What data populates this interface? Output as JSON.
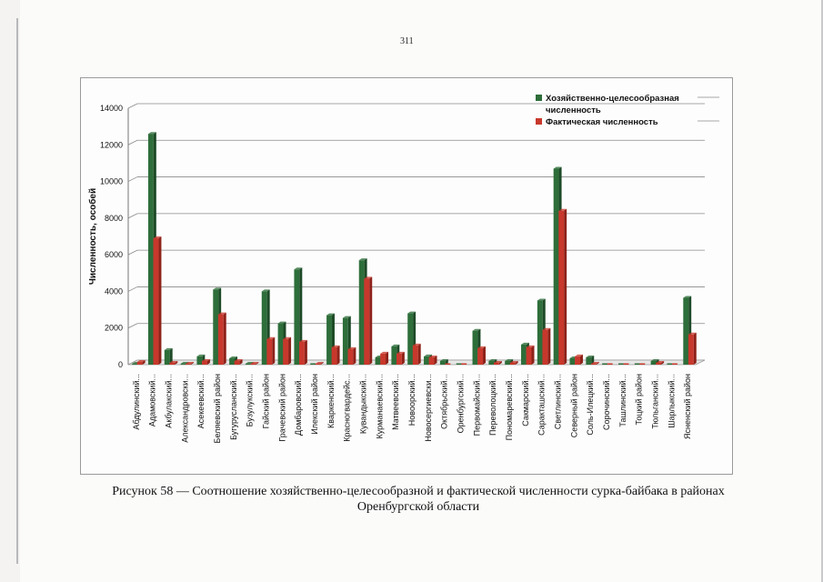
{
  "page_number": "311",
  "caption": {
    "line1": "Рисунок 58 — Соотношение хозяйственно-целесообразной  и фактической численности сурка-байбака в районах",
    "line2": "Оренбургской области"
  },
  "colors": {
    "series1": "#2e6e3a",
    "series1_side": "#1d4a27",
    "series2": "#c8382c",
    "series2_side": "#8e2219"
  },
  "chart_data": {
    "type": "bar",
    "title": "",
    "xlabel": "",
    "ylabel": "Численность, особей",
    "ylim": [
      0,
      14000
    ],
    "yticks": [
      "0",
      "2000",
      "4000",
      "6000",
      "8000",
      "10000",
      "12000",
      "14000"
    ],
    "legend_position": "top-right",
    "categories": [
      "Абдулинский...",
      "Адамовский...",
      "Акбулакский...",
      "Александровски...",
      "Асекеевский...",
      "Беляевский район",
      "Бугурусланский...",
      "Бузулукский...",
      "Гайский район",
      "Грачевский район",
      "Домбаровский...",
      "Илекский район",
      "Кваркенский...",
      "Красногвардейс...",
      "Кувандыкский...",
      "Курманаевский...",
      "Матвеевский...",
      "Новоорский...",
      "Новосергиевски...",
      "Октябрьский...",
      "Оренбургский...",
      "Первомайский...",
      "Переволоцкий...",
      "Пономаревский...",
      "Сакмарский...",
      "Саракташский...",
      "Светлинский...",
      "Северный район",
      "Соль-Илецкий...",
      "Сорочинский...",
      "Ташлинский...",
      "Тоцкий район",
      "Тюльганский...",
      "Шарлыкский...",
      "Ясненский район"
    ],
    "series": [
      {
        "name": "Хозяйственно-целесообразная численность",
        "values": [
          50,
          12600,
          800,
          50,
          450,
          4100,
          350,
          50,
          4000,
          2250,
          5200,
          20,
          2700,
          2550,
          5700,
          400,
          1000,
          2800,
          450,
          200,
          20,
          1850,
          200,
          200,
          1100,
          3500,
          10700,
          350,
          400,
          10,
          10,
          10,
          200,
          10,
          3650
        ]
      },
      {
        "name": "Фактическая численность",
        "values": [
          150,
          6900,
          100,
          50,
          200,
          2750,
          200,
          50,
          1400,
          1400,
          1250,
          50,
          950,
          850,
          4700,
          600,
          600,
          1050,
          400,
          10,
          10,
          900,
          100,
          100,
          950,
          1900,
          8400,
          450,
          50,
          10,
          10,
          10,
          100,
          10,
          1650
        ]
      }
    ]
  }
}
